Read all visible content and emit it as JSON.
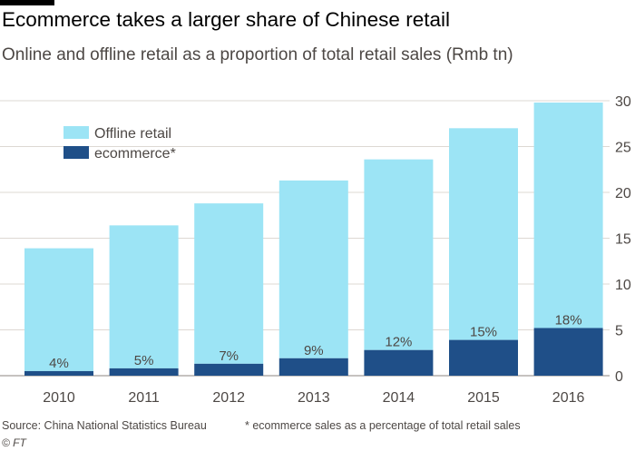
{
  "title": "Ecommerce takes a larger share of Chinese retail",
  "subtitle": "Online and offline retail as a proportion of total retail sales (Rmb tn)",
  "source": "Source: China National Statistics Bureau",
  "note": "* ecommerce sales as a percentage of total retail sales",
  "credit": "© FT",
  "colors": {
    "offline": "#9ce4f5",
    "ecommerce": "#1f4f88",
    "grid": "#ddd8d3",
    "text": "#4d4845"
  },
  "chart_data": {
    "type": "bar",
    "stacked": true,
    "categories": [
      "2010",
      "2011",
      "2012",
      "2013",
      "2014",
      "2015",
      "2016"
    ],
    "series": [
      {
        "name": "ecommerce*",
        "values": [
          0.5,
          0.8,
          1.3,
          1.9,
          2.8,
          3.9,
          5.2
        ]
      },
      {
        "name": "Offline retail",
        "values": [
          13.4,
          15.6,
          17.5,
          19.4,
          20.8,
          23.1,
          24.6
        ]
      }
    ],
    "data_labels": [
      "4%",
      "5%",
      "7%",
      "9%",
      "12%",
      "15%",
      "18%"
    ],
    "ylim": [
      0,
      30
    ],
    "yticks": [
      "0",
      "5",
      "10",
      "15",
      "20",
      "25",
      "30"
    ],
    "ytick_values": [
      0,
      5,
      10,
      15,
      20,
      25,
      30
    ],
    "y_axis_side": "right",
    "grid": true,
    "legend_position": "top-left"
  }
}
